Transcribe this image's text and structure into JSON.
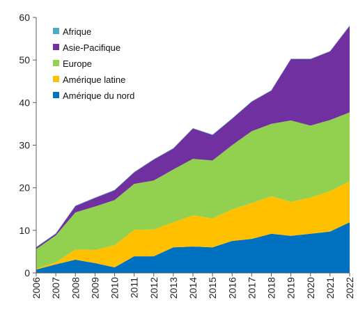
{
  "chart_data": {
    "type": "area",
    "stacked": true,
    "title": "",
    "xlabel": "",
    "ylabel": "",
    "ylim": [
      0,
      60
    ],
    "yticks": [
      0,
      10,
      20,
      30,
      40,
      50,
      60
    ],
    "grid": false,
    "legend_position": "top-left",
    "categories": [
      "2006",
      "2007",
      "2008",
      "2009",
      "2010",
      "2011",
      "2012",
      "2013",
      "2014",
      "2015",
      "2016",
      "2017",
      "2018",
      "2019",
      "2020",
      "2021",
      "2022"
    ],
    "series": [
      {
        "name": "Amérique du nord",
        "color": "#0070C0",
        "values": [
          0.8,
          2.0,
          3.1,
          2.3,
          1.3,
          3.9,
          3.9,
          6.0,
          6.2,
          6.0,
          7.5,
          8.0,
          9.2,
          8.7,
          9.2,
          9.7,
          11.9
        ]
      },
      {
        "name": "Amérique latine",
        "color": "#FFC000",
        "values": [
          0.2,
          0.5,
          2.4,
          3.1,
          5.2,
          6.2,
          6.3,
          5.9,
          7.3,
          6.8,
          7.4,
          8.4,
          8.8,
          8.0,
          8.5,
          9.5,
          9.6
        ]
      },
      {
        "name": "Europe",
        "color": "#92D050",
        "values": [
          4.6,
          6.3,
          8.7,
          10.2,
          10.6,
          10.8,
          11.5,
          12.4,
          13.3,
          13.6,
          15.1,
          16.9,
          17.0,
          19.1,
          16.9,
          16.7,
          16.2
        ]
      },
      {
        "name": "Asie-Pacifique",
        "color": "#7030A0",
        "values": [
          0.4,
          0.4,
          1.5,
          2.0,
          2.3,
          2.7,
          4.9,
          4.9,
          7.1,
          6.0,
          6.2,
          6.9,
          7.8,
          14.4,
          15.6,
          16.1,
          20.3
        ]
      },
      {
        "name": "Afrique",
        "color": "#4BACC6",
        "values": [
          0.1,
          0.1,
          0.1,
          0.1,
          0.1,
          0.1,
          0.1,
          0.1,
          0.1,
          0.1,
          0.1,
          0.1,
          0.1,
          0.1,
          0.1,
          0.1,
          0.1
        ]
      }
    ]
  }
}
